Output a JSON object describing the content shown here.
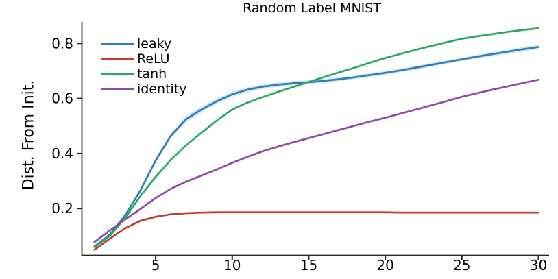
{
  "chart_data": {
    "type": "line",
    "title": "Random Label MNIST",
    "xlabel": "",
    "ylabel": "Dist. From Init.",
    "grid": false,
    "legend_position": "top-left",
    "legend_frame": false,
    "xlim": [
      0.16,
      30.65
    ],
    "ylim": [
      0.031,
      0.878
    ],
    "xticks": {
      "values": [
        5,
        10,
        15,
        20,
        25,
        30
      ],
      "labels": [
        "5",
        "10",
        "15",
        "20",
        "25",
        "30"
      ]
    },
    "yticks": {
      "values": [
        0.2,
        0.4,
        0.6,
        0.8
      ],
      "labels": [
        "0.2",
        "0.4",
        "0.6",
        "0.8"
      ]
    },
    "axis_color": "#262626",
    "text_color": "#000000",
    "x": [
      1,
      2,
      3,
      4,
      5,
      6,
      7,
      8,
      9,
      10,
      11,
      12,
      13,
      14,
      15,
      16,
      17,
      18,
      19,
      20,
      21,
      22,
      23,
      24,
      25,
      26,
      27,
      28,
      29,
      30
    ],
    "series": [
      {
        "name": "leaky",
        "color": "#2e7ebc",
        "band_color": "#b8d4ea",
        "band_halfwidth": [
          0.003,
          0.004,
          0.005,
          0.007,
          0.008,
          0.01,
          0.011,
          0.011,
          0.01,
          0.009,
          0.009,
          0.008,
          0.008,
          0.008,
          0.008,
          0.007,
          0.007,
          0.007,
          0.007,
          0.007,
          0.007,
          0.007,
          0.007,
          0.007,
          0.007,
          0.007,
          0.008,
          0.008,
          0.008,
          0.008
        ],
        "values": [
          0.062,
          0.105,
          0.175,
          0.265,
          0.375,
          0.465,
          0.525,
          0.56,
          0.59,
          0.615,
          0.632,
          0.643,
          0.65,
          0.655,
          0.659,
          0.664,
          0.67,
          0.677,
          0.685,
          0.693,
          0.702,
          0.712,
          0.722,
          0.732,
          0.742,
          0.752,
          0.761,
          0.77,
          0.779,
          0.787
        ]
      },
      {
        "name": "ReLU",
        "color": "#c43a2b",
        "values": [
          0.05,
          0.09,
          0.128,
          0.155,
          0.17,
          0.179,
          0.183,
          0.185,
          0.186,
          0.186,
          0.186,
          0.186,
          0.186,
          0.186,
          0.186,
          0.186,
          0.186,
          0.186,
          0.186,
          0.186,
          0.185,
          0.185,
          0.185,
          0.185,
          0.185,
          0.185,
          0.185,
          0.185,
          0.185,
          0.185
        ]
      },
      {
        "name": "tanh",
        "color": "#29a95e",
        "values": [
          0.06,
          0.1,
          0.165,
          0.245,
          0.315,
          0.378,
          0.43,
          0.476,
          0.52,
          0.56,
          0.585,
          0.605,
          0.624,
          0.642,
          0.66,
          0.678,
          0.695,
          0.712,
          0.73,
          0.747,
          0.762,
          0.777,
          0.791,
          0.804,
          0.817,
          0.826,
          0.834,
          0.842,
          0.849,
          0.855
        ]
      },
      {
        "name": "identity",
        "color": "#9149a7",
        "values": [
          0.078,
          0.12,
          0.16,
          0.198,
          0.238,
          0.272,
          0.298,
          0.32,
          0.342,
          0.366,
          0.388,
          0.408,
          0.425,
          0.441,
          0.456,
          0.471,
          0.486,
          0.501,
          0.516,
          0.53,
          0.545,
          0.56,
          0.575,
          0.59,
          0.606,
          0.619,
          0.632,
          0.644,
          0.656,
          0.668
        ]
      }
    ]
  }
}
